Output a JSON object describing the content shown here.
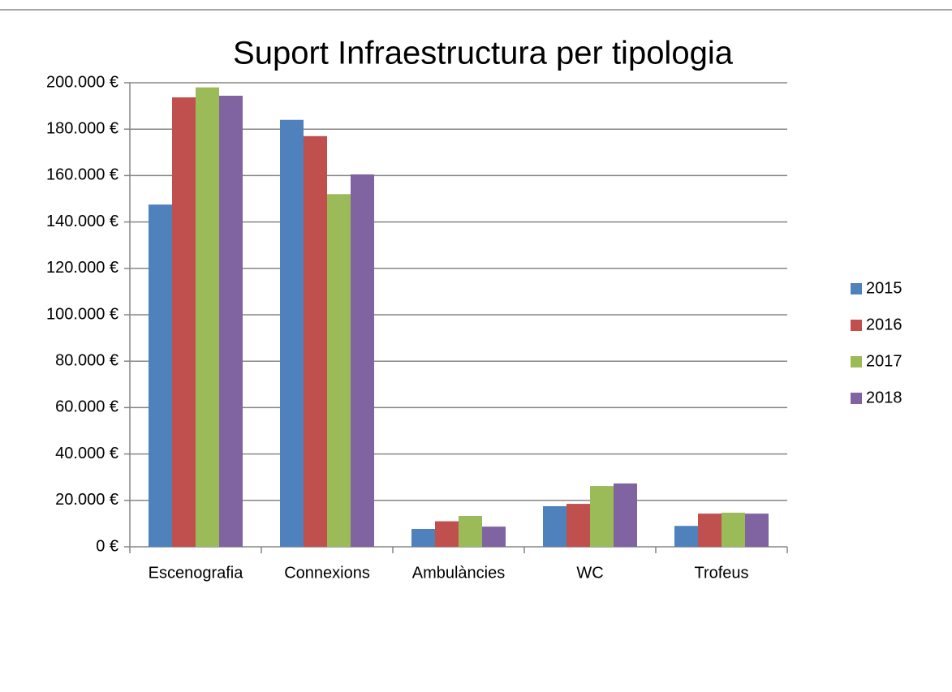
{
  "chart_data": {
    "type": "bar",
    "title": "Suport Infraestructura per tipologia",
    "categories": [
      "Escenografia",
      "Connexions",
      "Ambulàncies",
      "WC",
      "Trofeus"
    ],
    "series": [
      {
        "name": "2015",
        "color": "#4f81bd",
        "values": [
          147500,
          184000,
          7700,
          17500,
          9000
        ]
      },
      {
        "name": "2016",
        "color": "#c0504d",
        "values": [
          193700,
          177000,
          11000,
          18500,
          14300
        ]
      },
      {
        "name": "2017",
        "color": "#9bbb59",
        "values": [
          198000,
          152000,
          13300,
          26200,
          14700
        ]
      },
      {
        "name": "2018",
        "color": "#8064a2",
        "values": [
          194400,
          160500,
          8700,
          27300,
          14300
        ]
      }
    ],
    "ylim": [
      0,
      200000
    ],
    "yticks": [
      {
        "value": 0,
        "label": "0 €"
      },
      {
        "value": 20000,
        "label": "20.000 €"
      },
      {
        "value": 40000,
        "label": "40.000 €"
      },
      {
        "value": 60000,
        "label": "60.000 €"
      },
      {
        "value": 80000,
        "label": "80.000 €"
      },
      {
        "value": 100000,
        "label": "100.000 €"
      },
      {
        "value": 120000,
        "label": "120.000 €"
      },
      {
        "value": 140000,
        "label": "140.000 €"
      },
      {
        "value": 160000,
        "label": "160.000 €"
      },
      {
        "value": 180000,
        "label": "180.000 €"
      },
      {
        "value": 200000,
        "label": "200.000 €"
      }
    ],
    "grid": true,
    "legend": "right"
  }
}
